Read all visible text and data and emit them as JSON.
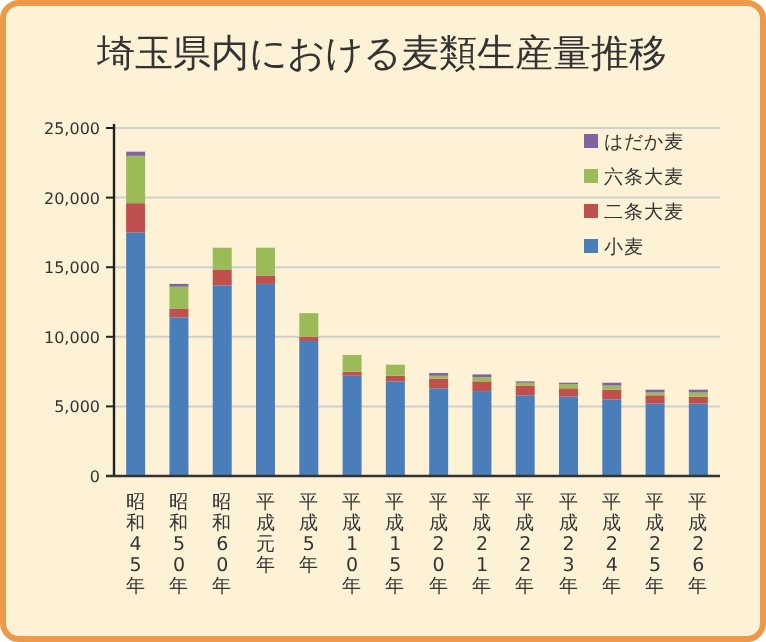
{
  "chart_data": {
    "type": "bar",
    "title": "埼玉県内における麦類生産量推移",
    "stacked": true,
    "categories": [
      "昭和45年",
      "昭和50年",
      "昭和60年",
      "平成元年",
      "平成5年",
      "平成10年",
      "平成15年",
      "平成20年",
      "平成21年",
      "平成22年",
      "平成23年",
      "平成24年",
      "平成25年",
      "平成26年"
    ],
    "series": [
      {
        "name": "小麦",
        "color": "#4a7ebb",
        "values": [
          17500,
          11400,
          13700,
          13800,
          9700,
          7200,
          6800,
          6300,
          6100,
          5800,
          5700,
          5500,
          5200,
          5200
        ]
      },
      {
        "name": "二条大麦",
        "color": "#c0504d",
        "values": [
          2100,
          600,
          1100,
          600,
          300,
          300,
          400,
          700,
          700,
          700,
          600,
          700,
          600,
          500
        ]
      },
      {
        "name": "六条大麦",
        "color": "#9bbb59",
        "values": [
          3400,
          1600,
          1600,
          2000,
          1700,
          1200,
          800,
          200,
          300,
          200,
          300,
          300,
          200,
          300
        ]
      },
      {
        "name": "はだか麦",
        "color": "#8064a2",
        "values": [
          300,
          200,
          null,
          null,
          null,
          null,
          null,
          200,
          200,
          100,
          100,
          200,
          200,
          200
        ]
      }
    ],
    "ylim": [
      0,
      25000
    ],
    "yticks": [
      {
        "value": 0,
        "label": "0"
      },
      {
        "value": 5000,
        "label": "5,000"
      },
      {
        "value": 10000,
        "label": "10,000"
      },
      {
        "value": 15000,
        "label": "15,000"
      },
      {
        "value": 20000,
        "label": "20,000"
      },
      {
        "value": 25000,
        "label": "25,000"
      }
    ],
    "grid": "y",
    "legend": "top right"
  }
}
